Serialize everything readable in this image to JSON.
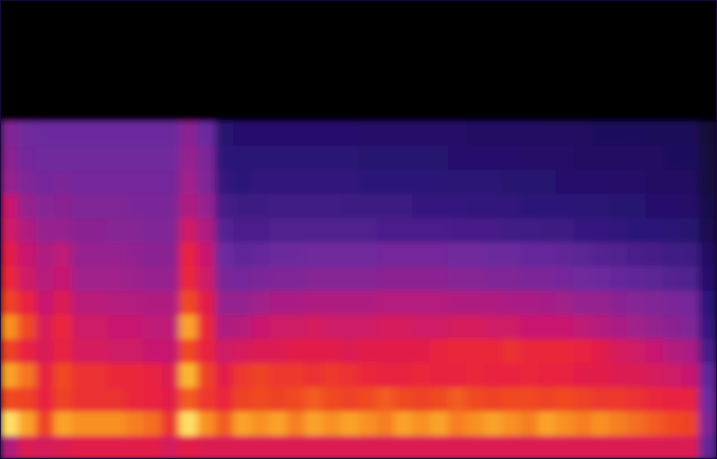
{
  "chart_data": {
    "type": "heatmap",
    "xlim": [
      0,
      40
    ],
    "ylim": [
      0,
      19
    ],
    "zlim": [
      0,
      1
    ],
    "tick_labels": false,
    "cells": [
      [
        0.55,
        0.66,
        0.64,
        0.66,
        0.68,
        0.68,
        0.68,
        0.68,
        0.68,
        0.64,
        0.68,
        0.66,
        0.66,
        0.66,
        0.66,
        0.66,
        0.66,
        0.66,
        0.66,
        0.66,
        0.66,
        0.66,
        0.66,
        0.66,
        0.66,
        0.66,
        0.66,
        0.66,
        0.66,
        0.66,
        0.66,
        0.66,
        0.66,
        0.66,
        0.66,
        0.66,
        0.66,
        0.66,
        0.66,
        0.4
      ],
      [
        0.97,
        0.9,
        0.78,
        0.9,
        0.88,
        0.88,
        0.88,
        0.86,
        0.84,
        0.75,
        0.97,
        0.88,
        0.82,
        0.9,
        0.88,
        0.9,
        0.86,
        0.9,
        0.88,
        0.9,
        0.88,
        0.86,
        0.9,
        0.88,
        0.9,
        0.86,
        0.88,
        0.9,
        0.88,
        0.86,
        0.9,
        0.88,
        0.86,
        0.88,
        0.86,
        0.84,
        0.82,
        0.8,
        0.78,
        0.45
      ],
      [
        0.8,
        0.78,
        0.7,
        0.78,
        0.74,
        0.74,
        0.74,
        0.72,
        0.7,
        0.68,
        0.82,
        0.76,
        0.72,
        0.78,
        0.8,
        0.78,
        0.8,
        0.82,
        0.8,
        0.78,
        0.8,
        0.82,
        0.8,
        0.78,
        0.8,
        0.82,
        0.8,
        0.78,
        0.8,
        0.8,
        0.78,
        0.8,
        0.78,
        0.76,
        0.76,
        0.74,
        0.72,
        0.7,
        0.7,
        0.42
      ],
      [
        0.9,
        0.85,
        0.7,
        0.8,
        0.74,
        0.74,
        0.72,
        0.72,
        0.7,
        0.66,
        0.92,
        0.78,
        0.68,
        0.76,
        0.78,
        0.76,
        0.76,
        0.74,
        0.76,
        0.74,
        0.72,
        0.7,
        0.7,
        0.72,
        0.7,
        0.7,
        0.72,
        0.7,
        0.7,
        0.72,
        0.7,
        0.7,
        0.68,
        0.68,
        0.66,
        0.66,
        0.64,
        0.62,
        0.6,
        0.4
      ],
      [
        0.78,
        0.7,
        0.65,
        0.7,
        0.64,
        0.64,
        0.62,
        0.62,
        0.6,
        0.6,
        0.8,
        0.7,
        0.62,
        0.64,
        0.66,
        0.66,
        0.68,
        0.68,
        0.68,
        0.66,
        0.68,
        0.68,
        0.68,
        0.68,
        0.7,
        0.72,
        0.72,
        0.72,
        0.74,
        0.72,
        0.72,
        0.72,
        0.7,
        0.68,
        0.64,
        0.62,
        0.6,
        0.56,
        0.54,
        0.35
      ],
      [
        0.88,
        0.8,
        0.65,
        0.72,
        0.62,
        0.62,
        0.6,
        0.6,
        0.58,
        0.58,
        0.9,
        0.72,
        0.55,
        0.56,
        0.6,
        0.62,
        0.62,
        0.64,
        0.62,
        0.62,
        0.62,
        0.64,
        0.64,
        0.62,
        0.62,
        0.64,
        0.64,
        0.62,
        0.62,
        0.6,
        0.6,
        0.6,
        0.58,
        0.56,
        0.54,
        0.52,
        0.5,
        0.48,
        0.46,
        0.32
      ],
      [
        0.78,
        0.7,
        0.6,
        0.66,
        0.57,
        0.57,
        0.56,
        0.56,
        0.55,
        0.55,
        0.8,
        0.68,
        0.5,
        0.5,
        0.52,
        0.54,
        0.54,
        0.55,
        0.55,
        0.55,
        0.55,
        0.56,
        0.56,
        0.56,
        0.56,
        0.55,
        0.55,
        0.55,
        0.54,
        0.54,
        0.53,
        0.52,
        0.5,
        0.5,
        0.48,
        0.47,
        0.46,
        0.45,
        0.44,
        0.3
      ],
      [
        0.72,
        0.62,
        0.56,
        0.6,
        0.52,
        0.52,
        0.52,
        0.51,
        0.5,
        0.5,
        0.72,
        0.62,
        0.45,
        0.44,
        0.45,
        0.46,
        0.46,
        0.47,
        0.47,
        0.47,
        0.47,
        0.48,
        0.48,
        0.48,
        0.48,
        0.47,
        0.47,
        0.46,
        0.46,
        0.45,
        0.45,
        0.44,
        0.43,
        0.42,
        0.41,
        0.4,
        0.39,
        0.38,
        0.37,
        0.27
      ],
      [
        0.68,
        0.6,
        0.55,
        0.58,
        0.5,
        0.5,
        0.5,
        0.49,
        0.48,
        0.48,
        0.7,
        0.6,
        0.42,
        0.4,
        0.41,
        0.42,
        0.42,
        0.43,
        0.43,
        0.43,
        0.43,
        0.44,
        0.44,
        0.44,
        0.44,
        0.43,
        0.43,
        0.42,
        0.42,
        0.41,
        0.41,
        0.4,
        0.39,
        0.38,
        0.37,
        0.36,
        0.35,
        0.34,
        0.33,
        0.25
      ],
      [
        0.62,
        0.55,
        0.5,
        0.5,
        0.48,
        0.48,
        0.47,
        0.47,
        0.46,
        0.46,
        0.62,
        0.55,
        0.38,
        0.36,
        0.36,
        0.37,
        0.37,
        0.37,
        0.37,
        0.37,
        0.37,
        0.36,
        0.36,
        0.36,
        0.36,
        0.35,
        0.35,
        0.35,
        0.34,
        0.34,
        0.33,
        0.33,
        0.32,
        0.32,
        0.31,
        0.3,
        0.3,
        0.29,
        0.28,
        0.2
      ],
      [
        0.6,
        0.5,
        0.47,
        0.48,
        0.46,
        0.46,
        0.46,
        0.45,
        0.45,
        0.45,
        0.55,
        0.5,
        0.35,
        0.33,
        0.33,
        0.34,
        0.34,
        0.34,
        0.34,
        0.33,
        0.33,
        0.33,
        0.33,
        0.32,
        0.32,
        0.32,
        0.31,
        0.31,
        0.31,
        0.3,
        0.3,
        0.3,
        0.29,
        0.29,
        0.28,
        0.28,
        0.27,
        0.27,
        0.26,
        0.18
      ],
      [
        0.5,
        0.46,
        0.44,
        0.45,
        0.44,
        0.44,
        0.44,
        0.44,
        0.44,
        0.44,
        0.52,
        0.46,
        0.32,
        0.3,
        0.31,
        0.31,
        0.31,
        0.31,
        0.31,
        0.31,
        0.3,
        0.3,
        0.3,
        0.3,
        0.29,
        0.29,
        0.29,
        0.29,
        0.28,
        0.28,
        0.28,
        0.27,
        0.27,
        0.27,
        0.26,
        0.26,
        0.25,
        0.25,
        0.24,
        0.16
      ],
      [
        0.48,
        0.44,
        0.43,
        0.43,
        0.43,
        0.43,
        0.43,
        0.43,
        0.43,
        0.43,
        0.5,
        0.45,
        0.3,
        0.29,
        0.29,
        0.29,
        0.29,
        0.29,
        0.29,
        0.29,
        0.28,
        0.28,
        0.28,
        0.28,
        0.28,
        0.27,
        0.27,
        0.27,
        0.27,
        0.26,
        0.26,
        0.26,
        0.25,
        0.25,
        0.25,
        0.24,
        0.24,
        0.23,
        0.23,
        0.15
      ],
      [
        0.46,
        0.43,
        0.42,
        0.42,
        0.42,
        0.42,
        0.42,
        0.42,
        0.42,
        0.42,
        0.48,
        0.42,
        0.28,
        0.27,
        0.27,
        0.27,
        0.27,
        0.27,
        0.27,
        0.27,
        0.26,
        0.26,
        0.26,
        0.26,
        0.26,
        0.26,
        0.25,
        0.25,
        0.25,
        0.25,
        0.24,
        0.24,
        0.24,
        0.23,
        0.23,
        0.23,
        0.22,
        0.22,
        0.22,
        0.14
      ],
      [
        0,
        0,
        0,
        0,
        0,
        0,
        0,
        0,
        0,
        0,
        0,
        0,
        0,
        0,
        0,
        0,
        0,
        0,
        0,
        0,
        0,
        0,
        0,
        0,
        0,
        0,
        0,
        0,
        0,
        0,
        0,
        0,
        0,
        0,
        0,
        0,
        0,
        0,
        0,
        0
      ],
      [
        0,
        0,
        0,
        0,
        0,
        0,
        0,
        0,
        0,
        0,
        0,
        0,
        0,
        0,
        0,
        0,
        0,
        0,
        0,
        0,
        0,
        0,
        0,
        0,
        0,
        0,
        0,
        0,
        0,
        0,
        0,
        0,
        0,
        0,
        0,
        0,
        0,
        0,
        0,
        0
      ],
      [
        0,
        0,
        0,
        0,
        0,
        0,
        0,
        0,
        0,
        0,
        0,
        0,
        0,
        0,
        0,
        0,
        0,
        0,
        0,
        0,
        0,
        0,
        0,
        0,
        0,
        0,
        0,
        0,
        0,
        0,
        0,
        0,
        0,
        0,
        0,
        0,
        0,
        0,
        0,
        0
      ],
      [
        0,
        0,
        0,
        0,
        0,
        0,
        0,
        0,
        0,
        0,
        0,
        0,
        0,
        0,
        0,
        0,
        0,
        0,
        0,
        0,
        0,
        0,
        0,
        0,
        0,
        0,
        0,
        0,
        0,
        0,
        0,
        0,
        0,
        0,
        0,
        0,
        0,
        0,
        0,
        0
      ],
      [
        0,
        0,
        0,
        0,
        0,
        0,
        0,
        0,
        0,
        0,
        0,
        0,
        0,
        0,
        0,
        0,
        0,
        0,
        0,
        0,
        0,
        0,
        0,
        0,
        0,
        0,
        0,
        0,
        0,
        0,
        0,
        0,
        0,
        0,
        0,
        0,
        0,
        0,
        0,
        0
      ]
    ]
  }
}
